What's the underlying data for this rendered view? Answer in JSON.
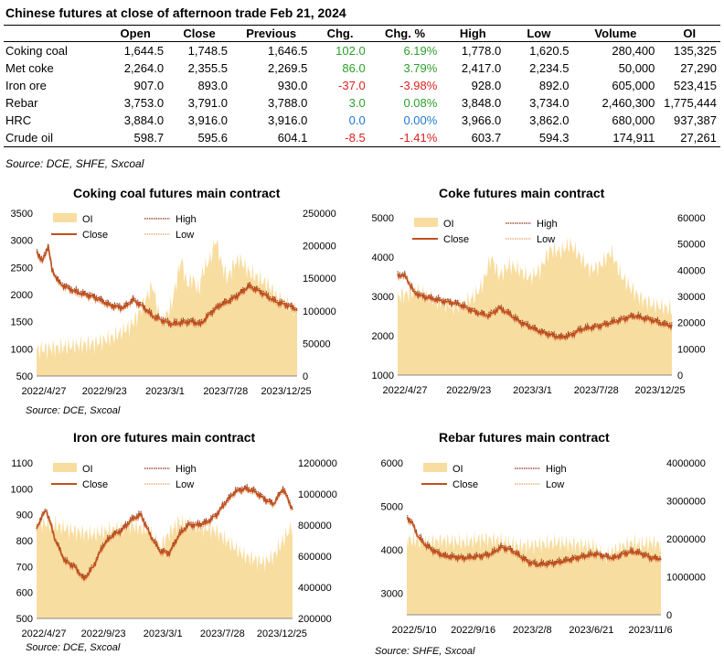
{
  "title": "Chinese futures at close of afternoon trade Feb 21, 2024",
  "table": {
    "columns": [
      "",
      "Open",
      "Close",
      "Previous",
      "Chg.",
      "Chg. %",
      "High",
      "Low",
      "Volume",
      "OI"
    ],
    "rows": [
      {
        "name": "Coking coal",
        "open": "1,644.5",
        "close": "1,748.5",
        "previous": "1,646.5",
        "chg": "102.0",
        "chg_pct": "6.19%",
        "high": "1,778.0",
        "low": "1,620.5",
        "volume": "280,400",
        "oi": "135,325",
        "dir": "pos"
      },
      {
        "name": "Met coke",
        "open": "2,264.0",
        "close": "2,355.5",
        "previous": "2,269.5",
        "chg": "86.0",
        "chg_pct": "3.79%",
        "high": "2,417.0",
        "low": "2,234.5",
        "volume": "50,000",
        "oi": "27,290",
        "dir": "pos"
      },
      {
        "name": "Iron ore",
        "open": "907.0",
        "close": "893.0",
        "previous": "930.0",
        "chg": "-37.0",
        "chg_pct": "-3.98%",
        "high": "928.0",
        "low": "892.0",
        "volume": "605,000",
        "oi": "523,415",
        "dir": "neg"
      },
      {
        "name": "Rebar",
        "open": "3,753.0",
        "close": "3,791.0",
        "previous": "3,788.0",
        "chg": "3.0",
        "chg_pct": "0.08%",
        "high": "3,848.0",
        "low": "3,734.0",
        "volume": "2,460,300",
        "oi": "1,775,444",
        "dir": "pos"
      },
      {
        "name": "HRC",
        "open": "3,884.0",
        "close": "3,916.0",
        "previous": "3,916.0",
        "chg": "0.0",
        "chg_pct": "0.00%",
        "high": "3,966.0",
        "low": "3,862.0",
        "volume": "680,000",
        "oi": "937,387",
        "dir": "zero"
      },
      {
        "name": "Crude oil",
        "open": "598.7",
        "close": "595.6",
        "previous": "604.1",
        "chg": "-8.5",
        "chg_pct": "-1.41%",
        "high": "603.7",
        "low": "594.3",
        "volume": "174,911",
        "oi": "27,261",
        "dir": "neg"
      }
    ]
  },
  "source": "Source: DCE, SHFE, Sxcoal",
  "colors": {
    "oi": "#f8dda0",
    "close": "#c0501e",
    "high": "#8b2e12",
    "low": "#e8a070",
    "pos": "#2ca02c",
    "neg": "#e02020",
    "zero": "#1f78d0"
  },
  "chart_data": [
    {
      "type": "line",
      "title": "Coking coal futures main contract",
      "source": "Source: DCE, Sxcoal",
      "legend": [
        "OI",
        "High",
        "Close",
        "Low"
      ],
      "x_ticks": [
        "2022/4/27",
        "2022/9/23",
        "2023/3/1",
        "2023/7/28",
        "2023/12/25"
      ],
      "ylim": [
        500,
        3500
      ],
      "y_ticks": [
        500,
        1000,
        1500,
        2000,
        2500,
        3000,
        3500
      ],
      "y2lim": [
        0,
        250000
      ],
      "y2_ticks": [
        0,
        50000,
        100000,
        150000,
        200000,
        250000
      ],
      "close": [
        [
          0,
          2800
        ],
        [
          3,
          2600
        ],
        [
          6,
          2900
        ],
        [
          8,
          2450
        ],
        [
          12,
          2200
        ],
        [
          20,
          2050
        ],
        [
          30,
          1950
        ],
        [
          38,
          1800
        ],
        [
          45,
          1750
        ],
        [
          50,
          1900
        ],
        [
          55,
          1780
        ],
        [
          60,
          1600
        ],
        [
          70,
          1450
        ],
        [
          80,
          1500
        ],
        [
          85,
          1450
        ],
        [
          90,
          1650
        ],
        [
          95,
          1800
        ],
        [
          100,
          1880
        ],
        [
          105,
          2000
        ],
        [
          110,
          2150
        ],
        [
          116,
          2050
        ],
        [
          120,
          1950
        ],
        [
          125,
          1850
        ],
        [
          130,
          1800
        ],
        [
          135,
          1720
        ]
      ],
      "oi": [
        [
          0,
          40000
        ],
        [
          15,
          45000
        ],
        [
          30,
          50000
        ],
        [
          40,
          60000
        ],
        [
          48,
          75000
        ],
        [
          52,
          90000
        ],
        [
          57,
          120000
        ],
        [
          60,
          140000
        ],
        [
          63,
          100000
        ],
        [
          65,
          80000
        ],
        [
          70,
          110000
        ],
        [
          75,
          180000
        ],
        [
          78,
          140000
        ],
        [
          81,
          150000
        ],
        [
          84,
          130000
        ],
        [
          86,
          160000
        ],
        [
          90,
          180000
        ],
        [
          93,
          210000
        ],
        [
          96,
          170000
        ],
        [
          99,
          150000
        ],
        [
          102,
          170000
        ],
        [
          105,
          180000
        ],
        [
          110,
          160000
        ],
        [
          115,
          150000
        ],
        [
          120,
          140000
        ],
        [
          125,
          120000
        ],
        [
          130,
          110000
        ],
        [
          135,
          100000
        ]
      ]
    },
    {
      "type": "line",
      "title": "Coke futures main contract",
      "source": "",
      "legend": [
        "OI",
        "High",
        "Close",
        "Low"
      ],
      "x_ticks": [
        "2022/4/27",
        "2022/9/23",
        "2023/3/1",
        "2023/7/28",
        "2023/12/25"
      ],
      "ylim": [
        1000,
        5000
      ],
      "y_ticks": [
        1000,
        2000,
        3000,
        4000,
        5000
      ],
      "y2lim": [
        0,
        60000
      ],
      "y2_ticks": [
        0,
        10000,
        20000,
        30000,
        40000,
        50000,
        60000
      ],
      "close": [
        [
          0,
          3550
        ],
        [
          4,
          3500
        ],
        [
          8,
          3100
        ],
        [
          12,
          3000
        ],
        [
          20,
          2900
        ],
        [
          30,
          2800
        ],
        [
          38,
          2600
        ],
        [
          45,
          2500
        ],
        [
          50,
          2700
        ],
        [
          55,
          2550
        ],
        [
          60,
          2350
        ],
        [
          70,
          2100
        ],
        [
          80,
          1950
        ],
        [
          85,
          2000
        ],
        [
          90,
          2150
        ],
        [
          100,
          2250
        ],
        [
          110,
          2400
        ],
        [
          116,
          2500
        ],
        [
          120,
          2450
        ],
        [
          125,
          2400
        ],
        [
          130,
          2300
        ],
        [
          135,
          2250
        ]
      ],
      "oi": [
        [
          0,
          30000
        ],
        [
          10,
          32000
        ],
        [
          20,
          28000
        ],
        [
          30,
          26000
        ],
        [
          38,
          30000
        ],
        [
          42,
          35000
        ],
        [
          46,
          45000
        ],
        [
          50,
          38000
        ],
        [
          55,
          42000
        ],
        [
          60,
          40000
        ],
        [
          65,
          37000
        ],
        [
          70,
          40000
        ],
        [
          75,
          48000
        ],
        [
          80,
          47000
        ],
        [
          85,
          50000
        ],
        [
          90,
          45000
        ],
        [
          95,
          40000
        ],
        [
          100,
          42000
        ],
        [
          105,
          47000
        ],
        [
          110,
          38000
        ],
        [
          115,
          33000
        ],
        [
          120,
          29000
        ],
        [
          125,
          27000
        ],
        [
          130,
          26000
        ],
        [
          135,
          25000
        ]
      ]
    },
    {
      "type": "line",
      "title": "Iron ore futures main contract",
      "source": "Source: DCE, Sxcoal",
      "legend": [
        "OI",
        "High",
        "Close",
        "Low"
      ],
      "x_ticks": [
        "2022/4/27",
        "2022/9/23",
        "2023/3/1",
        "2023/7/28",
        "2023/12/25"
      ],
      "ylim": [
        500,
        1100
      ],
      "y_ticks": [
        500,
        600,
        700,
        800,
        900,
        1000,
        1100
      ],
      "y2lim": [
        200000,
        1200000
      ],
      "y2_ticks": [
        200000,
        400000,
        600000,
        800000,
        1000000,
        1200000
      ],
      "close": [
        [
          0,
          850
        ],
        [
          5,
          920
        ],
        [
          10,
          800
        ],
        [
          15,
          720
        ],
        [
          20,
          700
        ],
        [
          25,
          650
        ],
        [
          30,
          700
        ],
        [
          35,
          780
        ],
        [
          40,
          820
        ],
        [
          45,
          840
        ],
        [
          50,
          880
        ],
        [
          55,
          900
        ],
        [
          60,
          820
        ],
        [
          65,
          760
        ],
        [
          70,
          750
        ],
        [
          75,
          820
        ],
        [
          80,
          860
        ],
        [
          85,
          860
        ],
        [
          90,
          870
        ],
        [
          95,
          900
        ],
        [
          100,
          950
        ],
        [
          105,
          990
        ],
        [
          110,
          1000
        ],
        [
          115,
          990
        ],
        [
          120,
          960
        ],
        [
          125,
          940
        ],
        [
          130,
          1000
        ],
        [
          135,
          920
        ]
      ],
      "oi": [
        [
          0,
          820000
        ],
        [
          10,
          800000
        ],
        [
          20,
          760000
        ],
        [
          30,
          740000
        ],
        [
          40,
          770000
        ],
        [
          50,
          800000
        ],
        [
          55,
          780000
        ],
        [
          60,
          760000
        ],
        [
          65,
          650000
        ],
        [
          70,
          750000
        ],
        [
          75,
          820000
        ],
        [
          80,
          800000
        ],
        [
          85,
          790000
        ],
        [
          90,
          780000
        ],
        [
          95,
          760000
        ],
        [
          100,
          700000
        ],
        [
          105,
          650000
        ],
        [
          110,
          600000
        ],
        [
          115,
          580000
        ],
        [
          120,
          560000
        ],
        [
          125,
          600000
        ],
        [
          130,
          700000
        ],
        [
          135,
          800000
        ]
      ]
    },
    {
      "type": "line",
      "title": "Rebar futures main contract",
      "source": "Source: SHFE, Sxcoal",
      "legend": [
        "OI",
        "High",
        "Close",
        "Low"
      ],
      "x_ticks": [
        "2022/5/10",
        "2022/9/16",
        "2023/2/8",
        "2023/6/21",
        "2023/11/6"
      ],
      "ylim": [
        2500,
        6000
      ],
      "y_ticks": [
        3000,
        4000,
        5000,
        6000
      ],
      "y2lim": [
        0,
        4000000
      ],
      "y2_ticks": [
        0,
        1000000,
        2000000,
        3000000,
        4000000
      ],
      "close": [
        [
          0,
          4750
        ],
        [
          3,
          4600
        ],
        [
          6,
          4300
        ],
        [
          10,
          4100
        ],
        [
          15,
          3950
        ],
        [
          20,
          3850
        ],
        [
          30,
          3800
        ],
        [
          40,
          3850
        ],
        [
          45,
          3900
        ],
        [
          50,
          4050
        ],
        [
          55,
          4000
        ],
        [
          60,
          3850
        ],
        [
          65,
          3700
        ],
        [
          70,
          3650
        ],
        [
          80,
          3700
        ],
        [
          85,
          3750
        ],
        [
          90,
          3800
        ],
        [
          95,
          3850
        ],
        [
          100,
          3900
        ],
        [
          105,
          3850
        ],
        [
          110,
          3800
        ],
        [
          115,
          3900
        ],
        [
          120,
          3950
        ],
        [
          125,
          3900
        ],
        [
          130,
          3800
        ],
        [
          135,
          3790
        ]
      ],
      "oi": [
        [
          0,
          2000000
        ],
        [
          10,
          1900000
        ],
        [
          20,
          1950000
        ],
        [
          30,
          1900000
        ],
        [
          40,
          2000000
        ],
        [
          50,
          1950000
        ],
        [
          60,
          1800000
        ],
        [
          70,
          1850000
        ],
        [
          80,
          1900000
        ],
        [
          90,
          1850000
        ],
        [
          100,
          1800000
        ],
        [
          105,
          1500000
        ],
        [
          110,
          1700000
        ],
        [
          115,
          1800000
        ],
        [
          120,
          1900000
        ],
        [
          125,
          1850000
        ],
        [
          130,
          1900000
        ],
        [
          135,
          1850000
        ]
      ]
    }
  ]
}
